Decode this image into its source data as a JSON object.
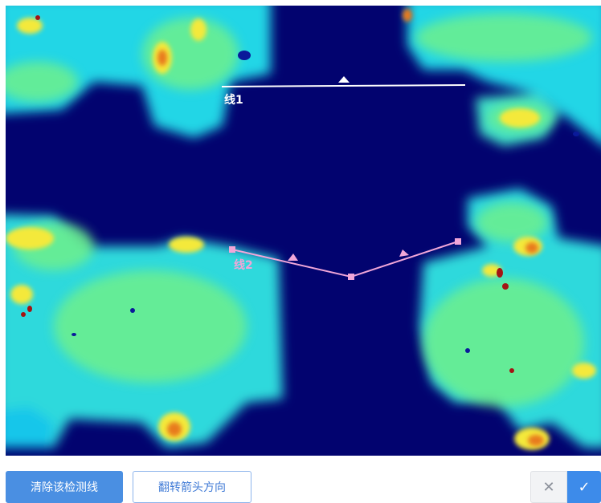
{
  "colors": {
    "background": "#02036f",
    "heat_cool": "#1ee4d8",
    "heat_mid": "#6ef08c",
    "heat_warm": "#f4e93a",
    "heat_hot": "#e87a1a",
    "heat_peak": "#a31414",
    "line1": "#ffffff",
    "line2": "#f0a6d8",
    "primary": "#4a8fe2"
  },
  "canvas": {
    "lines": [
      {
        "label": "线1",
        "color": "#ffffff"
      },
      {
        "label": "线2",
        "color": "#f0a6d8"
      }
    ]
  },
  "toolbar": {
    "clear_label": "清除该检测线",
    "flip_label": "翻转箭头方向",
    "cancel_icon": "close-icon",
    "confirm_icon": "check-icon",
    "cancel_glyph": "✕",
    "confirm_glyph": "✓"
  }
}
